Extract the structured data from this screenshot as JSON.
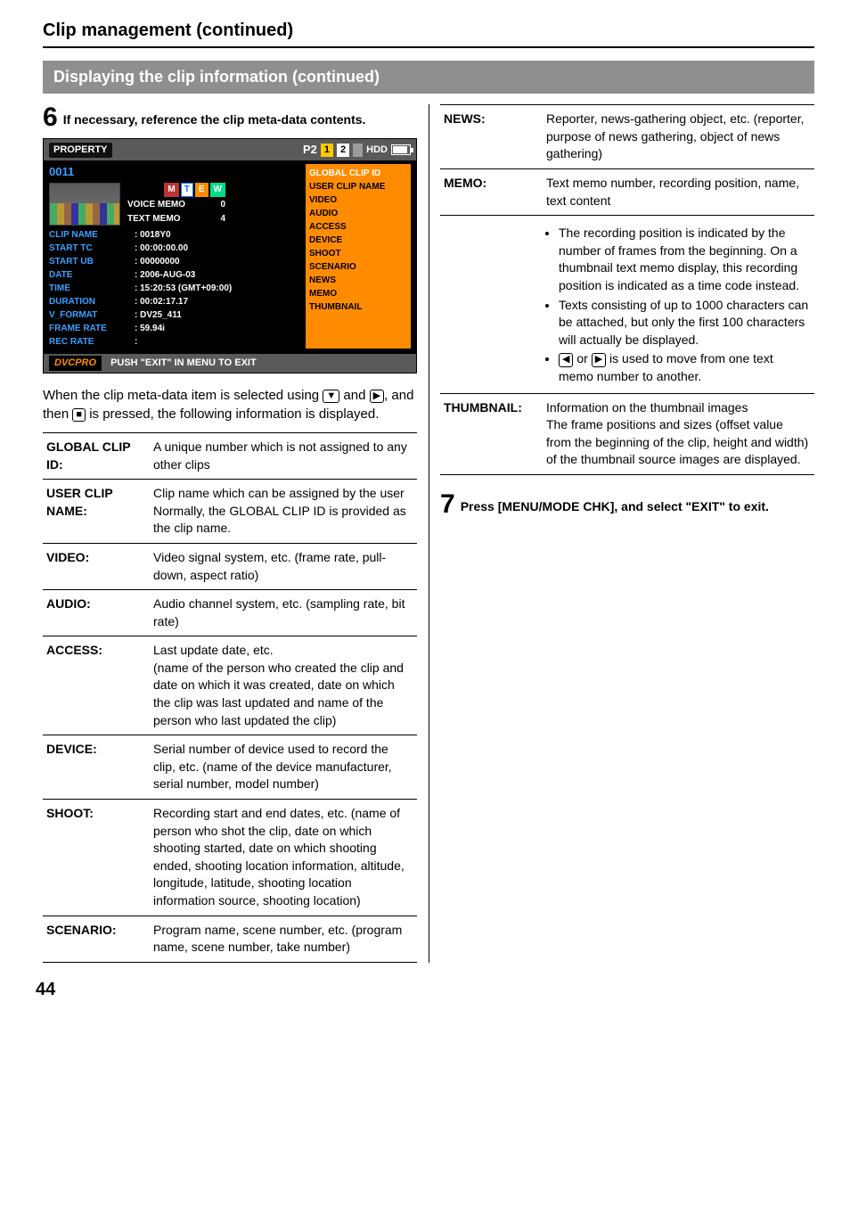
{
  "page_title": "Clip management (continued)",
  "section_bar": "Displaying the clip information (continued)",
  "step6": {
    "num": "6",
    "text": "If necessary, reference the clip meta-data contents."
  },
  "lcd": {
    "header_title": "PROPERTY",
    "p2": "P2",
    "slot1": "1",
    "slot2": "2",
    "hdd": "HDD",
    "clip_num": "0011",
    "vm_label": "VOICE MEMO",
    "vm_val": "0",
    "tm_label": "TEXT MEMO",
    "tm_val": "4",
    "rows": [
      {
        "k": "CLIP NAME",
        "v": ": 0018Y0"
      },
      {
        "k": "START TC",
        "v": ": 00:00:00.00"
      },
      {
        "k": "START UB",
        "v": ": 00000000"
      },
      {
        "k": "DATE",
        "v": ": 2006-AUG-03"
      },
      {
        "k": "TIME",
        "v": ": 15:20:53 (GMT+09:00)"
      },
      {
        "k": "DURATION",
        "v": ": 00:02:17.17"
      },
      {
        "k": "V_FORMAT",
        "v": ": DV25_411"
      },
      {
        "k": "FRAME RATE",
        "v": ": 59.94i"
      },
      {
        "k": "REC RATE",
        "v": ":"
      }
    ],
    "menu": [
      "GLOBAL CLIP ID",
      "USER CLIP NAME",
      "VIDEO",
      "AUDIO",
      "ACCESS",
      "DEVICE",
      "SHOOT",
      "SCENARIO",
      "NEWS",
      "MEMO",
      "THUMBNAIL"
    ],
    "footer_tag": "DVCPRO",
    "footer_text": "PUSH \"EXIT\" IN MENU TO EXIT"
  },
  "meta_para_1": "When the clip meta-data item is selected using ",
  "meta_para_2": " and ",
  "meta_para_3": ", and then ",
  "meta_para_4": " is pressed, the following information is displayed.",
  "icons": {
    "down": "▼",
    "right": "▶",
    "center": "■",
    "left": "◀",
    "rightb": "▶"
  },
  "left_defs": [
    {
      "term": "GLOBAL CLIP ID:",
      "desc": "A unique number which is not assigned to any other clips"
    },
    {
      "term": "USER CLIP NAME:",
      "desc": "Clip name which can be assigned by the user\nNormally, the GLOBAL CLIP ID is provided as the clip name."
    },
    {
      "term": "VIDEO:",
      "desc": "Video signal system, etc. (frame rate, pull-down, aspect ratio)"
    },
    {
      "term": "AUDIO:",
      "desc": "Audio channel system, etc. (sampling rate, bit rate)"
    },
    {
      "term": "ACCESS:",
      "desc": "Last update date, etc.\n(name of the person who created the clip and date on which it was created, date on which the clip was last updated and name of the person who last updated the clip)"
    },
    {
      "term": "DEVICE:",
      "desc": "Serial number of device used to record the clip, etc. (name of the device manufacturer, serial number, model number)"
    },
    {
      "term": "SHOOT:",
      "desc": "Recording start and end dates, etc. (name of person who shot the clip, date on which shooting started, date on which shooting ended, shooting location information, altitude, longitude, latitude, shooting location information source, shooting location)"
    },
    {
      "term": "SCENARIO:",
      "desc": "Program name, scene number, etc. (program name, scene number, take number)"
    }
  ],
  "right_defs": [
    {
      "term": "NEWS:",
      "desc": "Reporter, news-gathering object, etc. (reporter, purpose of news gathering, object of news gathering)"
    },
    {
      "term": "MEMO:",
      "desc": "Text memo number, recording position, name, text content"
    },
    {
      "term": "THUMBNAIL:",
      "desc": "Information on the thumbnail images\nThe frame positions and sizes (offset value from the beginning of the clip, height and width) of the thumbnail source images are displayed."
    }
  ],
  "memo_bullets": [
    "The recording position is indicated by the number of frames from the beginning. On a thumbnail text memo display, this recording position is indicated as a time code instead.",
    "Texts consisting of up to 1000 characters can be attached, but only the first 100 characters will actually be displayed."
  ],
  "memo_bullet3_a": " or ",
  "memo_bullet3_b": " is used to move from one text memo number to another.",
  "step7": {
    "num": "7",
    "text": "Press [MENU/MODE CHK], and select \"EXIT\" to exit."
  },
  "page_number": "44"
}
